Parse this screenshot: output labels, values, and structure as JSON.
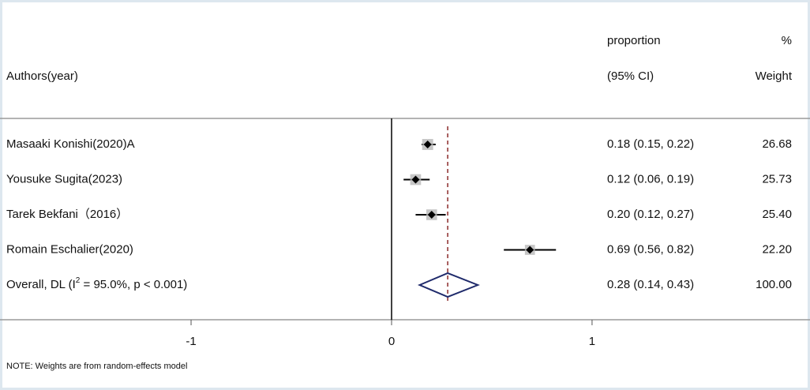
{
  "chart_data": {
    "type": "forest",
    "column_headers": {
      "author": "Authors(year)",
      "estimate_top": "proportion",
      "estimate_bottom": "(95% CI)",
      "weight_top": "%",
      "weight_bottom": "Weight"
    },
    "studies": {
      "names": [
        "Masaaki Konishi(2020)A",
        "Yousuke Sugita(2023)",
        "Tarek Bekfani（2016）",
        "Romain Eschalier(2020)"
      ],
      "values": [
        0.18,
        0.12,
        0.2,
        0.69
      ],
      "lower": [
        0.15,
        0.06,
        0.12,
        0.56
      ],
      "upper": [
        0.22,
        0.19,
        0.27,
        0.82
      ],
      "value_labels": [
        "0.18 (0.15, 0.22)",
        "0.12 (0.06, 0.19)",
        "0.20 (0.12, 0.27)",
        "0.69 (0.56, 0.82)"
      ],
      "weights": [
        26.68,
        25.73,
        25.4,
        22.2
      ],
      "weight_labels": [
        "26.68",
        "25.73",
        "25.40",
        "22.20"
      ]
    },
    "overall": {
      "name_parts": [
        "Overall, DL (I",
        "2",
        " = 95.0%, p < 0.001)"
      ],
      "value": 0.28,
      "lower": 0.14,
      "upper": 0.43,
      "value_label": "0.28 (0.14, 0.43)",
      "weight": 100.0,
      "weight_label": "100.00"
    },
    "xlim": [
      -1.953,
      2.087
    ],
    "xticks": [
      -1,
      0,
      1
    ],
    "null_line": 0,
    "note": "NOTE: Weights are from random-effects model"
  }
}
